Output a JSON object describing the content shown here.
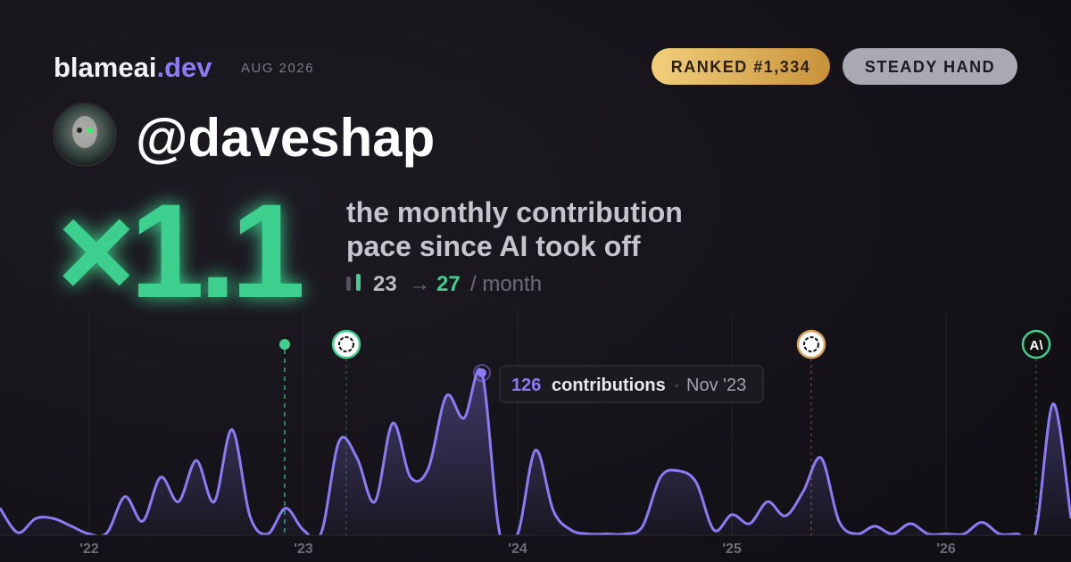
{
  "header": {
    "brand": "blameai",
    "brand_tld": ".dev",
    "date": "AUG 2026",
    "rank_badge": "RANKED #1,334",
    "style_badge": "STEADY HAND"
  },
  "profile": {
    "handle": "@daveshap"
  },
  "headline": {
    "multiplier": "×1.1",
    "description_lines": [
      "the monthly contribution",
      "pace since AI took off"
    ],
    "before": "23",
    "arrow": "→",
    "after": "27",
    "unit": "/ month"
  },
  "tooltip": {
    "label": "contributions",
    "separator": "·",
    "month": "Nov '23"
  },
  "markers": {
    "anthropic_logo": "A\\"
  },
  "chart_data": {
    "type": "line",
    "categories": [
      null,
      null,
      null,
      null,
      null,
      "'22",
      null,
      null,
      null,
      null,
      null,
      null,
      null,
      null,
      null,
      null,
      null,
      "'23",
      null,
      null,
      null,
      null,
      null,
      null,
      null,
      null,
      null,
      null,
      null,
      "'24",
      null,
      null,
      null,
      null,
      null,
      null,
      null,
      null,
      null,
      null,
      null,
      "'25",
      null,
      null,
      null,
      null,
      null,
      null,
      null,
      null,
      null,
      null,
      null,
      "'26",
      null,
      null,
      null,
      null,
      null,
      null,
      null
    ],
    "series": [
      {
        "name": "contributions",
        "color": "#8b7cf6",
        "values": [
          21,
          2,
          13,
          13,
          7,
          1,
          2,
          30,
          11,
          45,
          26,
          58,
          26,
          82,
          15,
          1,
          21,
          4,
          2,
          73,
          60,
          26,
          87,
          45,
          52,
          108,
          91,
          126,
          1,
          1,
          66,
          19,
          4,
          1,
          1,
          1,
          7,
          45,
          50,
          41,
          4,
          16,
          9,
          26,
          15,
          34,
          60,
          11,
          1,
          7,
          1,
          9,
          1,
          1,
          1,
          10,
          1,
          1,
          1,
          102,
          13
        ]
      }
    ],
    "ylim": [
      0,
      180
    ]
  }
}
